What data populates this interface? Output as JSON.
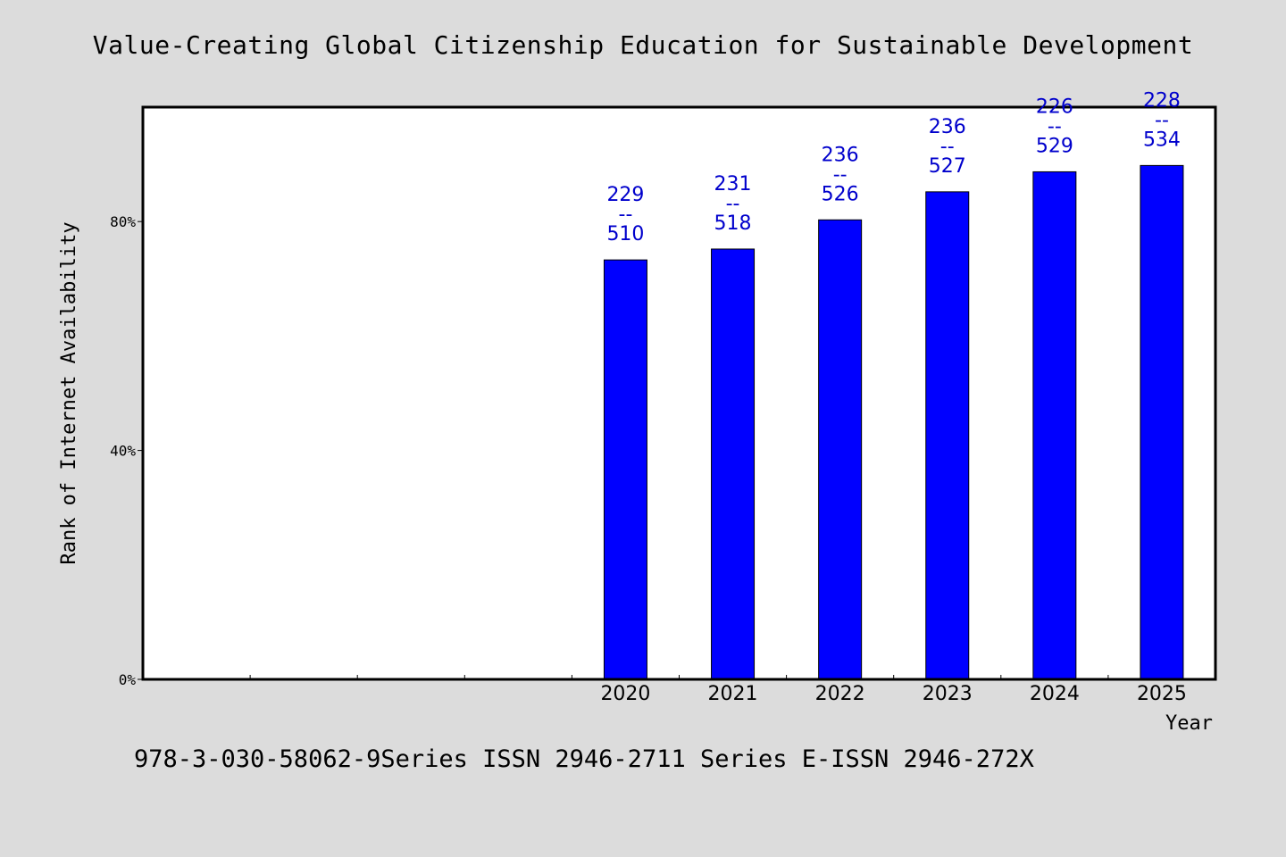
{
  "title": "Value-Creating Global Citizenship Education for Sustainable Development",
  "footer": "978-3-030-58062-9Series ISSN 2946-2711 Series E-ISSN 2946-272X",
  "colors": {
    "background": "#dcdcdc",
    "plot_background": "#ffffff",
    "bar": "#0000ff",
    "label": "#0000cc"
  },
  "chart_data": {
    "type": "bar",
    "title": "Value-Creating Global Citizenship Education for Sustainable Development",
    "xlabel": "Year",
    "ylabel": "Rank of Internet Availability",
    "categories": [
      "",
      "",
      "",
      "",
      "2020",
      "2021",
      "2022",
      "2023",
      "2024",
      "2025"
    ],
    "values": [
      null,
      null,
      null,
      null,
      73.3,
      75.2,
      80.3,
      85.2,
      88.7,
      89.8
    ],
    "data_labels": [
      null,
      null,
      null,
      null,
      [
        "229",
        "--",
        "510"
      ],
      [
        "231",
        "--",
        "518"
      ],
      [
        "236",
        "--",
        "526"
      ],
      [
        "236",
        "--",
        "527"
      ],
      [
        "226",
        "--",
        "529"
      ],
      [
        "228",
        "--",
        "534"
      ]
    ],
    "ylim": [
      0,
      100
    ],
    "yticks": [
      0,
      40,
      80
    ],
    "ytick_labels": [
      "0%",
      "40%",
      "80%"
    ],
    "grid": false,
    "legend": "none"
  }
}
